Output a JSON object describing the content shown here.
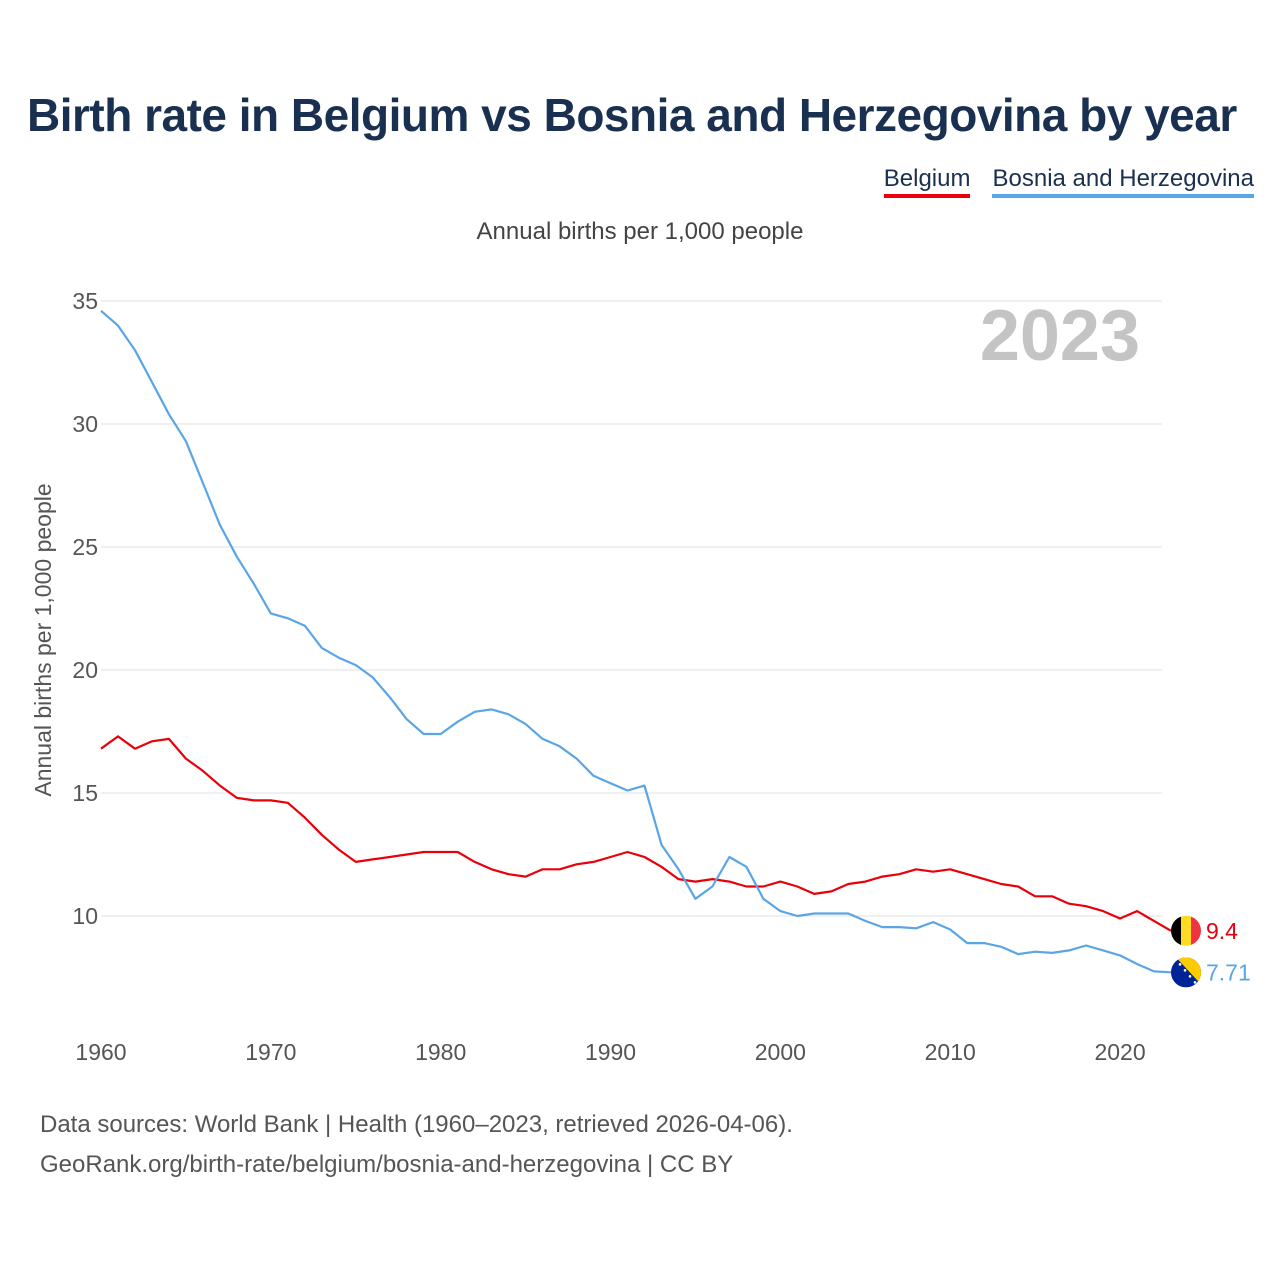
{
  "title": "Birth rate in Belgium vs Bosnia and Herzegovina by year",
  "subtitle": "Annual births per 1,000 people",
  "footer": {
    "line1": "Data sources: World Bank | Health (1960–2023, retrieved 2026-04-06).",
    "line2": "GeoRank.org/birth-rate/belgium/bosnia-and-herzegovina | CC BY"
  },
  "colors": {
    "belgium": "#e8000b",
    "bosnia": "#5aa5e6",
    "grid": "#e6e6e6",
    "year_label": "#c4c4c4"
  },
  "chart_data": {
    "type": "line",
    "title": "Birth rate in Belgium vs Bosnia and Herzegovina by year",
    "xlabel": "",
    "ylabel": "Annual births per 1,000 people",
    "xlim": [
      1960,
      2023
    ],
    "ylim": [
      7,
      35
    ],
    "yticks": [
      10,
      15,
      20,
      25,
      30,
      35
    ],
    "xticks": [
      1960,
      1970,
      1980,
      1990,
      2000,
      2010,
      2020
    ],
    "grid": true,
    "legend": "top-right",
    "year_label": "2023",
    "x": [
      1960,
      1961,
      1962,
      1963,
      1964,
      1965,
      1966,
      1967,
      1968,
      1969,
      1970,
      1971,
      1972,
      1973,
      1974,
      1975,
      1976,
      1977,
      1978,
      1979,
      1980,
      1981,
      1982,
      1983,
      1984,
      1985,
      1986,
      1987,
      1988,
      1989,
      1990,
      1991,
      1992,
      1993,
      1994,
      1995,
      1996,
      1997,
      1998,
      1999,
      2000,
      2001,
      2002,
      2003,
      2004,
      2005,
      2006,
      2007,
      2008,
      2009,
      2010,
      2011,
      2012,
      2013,
      2014,
      2015,
      2016,
      2017,
      2018,
      2019,
      2020,
      2021,
      2022,
      2023
    ],
    "series": [
      {
        "name": "Belgium",
        "end_label": "9.4",
        "values": [
          16.8,
          17.3,
          16.8,
          17.1,
          17.2,
          16.4,
          15.9,
          15.3,
          14.8,
          14.7,
          14.7,
          14.6,
          14.0,
          13.3,
          12.7,
          12.2,
          12.3,
          12.4,
          12.5,
          12.6,
          12.6,
          12.6,
          12.2,
          11.9,
          11.7,
          11.6,
          11.9,
          11.9,
          12.1,
          12.2,
          12.4,
          12.6,
          12.4,
          12.0,
          11.5,
          11.4,
          11.5,
          11.4,
          11.2,
          11.2,
          11.4,
          11.2,
          10.9,
          11.0,
          11.3,
          11.4,
          11.6,
          11.7,
          11.9,
          11.8,
          11.9,
          11.7,
          11.5,
          11.3,
          11.2,
          10.8,
          10.8,
          10.5,
          10.4,
          10.2,
          9.9,
          10.2,
          9.8,
          9.4
        ]
      },
      {
        "name": "Bosnia and Herzegovina",
        "end_label": "7.71",
        "values": [
          34.6,
          34.0,
          33.0,
          31.7,
          30.4,
          29.3,
          27.6,
          25.9,
          24.6,
          23.5,
          22.3,
          22.1,
          21.8,
          20.9,
          20.5,
          20.2,
          19.7,
          18.9,
          18.0,
          17.4,
          17.4,
          17.9,
          18.3,
          18.4,
          18.2,
          17.8,
          17.2,
          16.9,
          16.4,
          15.7,
          15.4,
          15.1,
          15.3,
          12.9,
          11.9,
          10.7,
          11.2,
          12.4,
          12.0,
          10.7,
          10.2,
          10.0,
          10.1,
          10.1,
          10.1,
          9.8,
          9.55,
          9.55,
          9.5,
          9.75,
          9.45,
          8.9,
          8.9,
          8.75,
          8.45,
          8.55,
          8.5,
          8.6,
          8.8,
          8.6,
          8.4,
          8.05,
          7.75,
          7.71
        ]
      }
    ]
  }
}
